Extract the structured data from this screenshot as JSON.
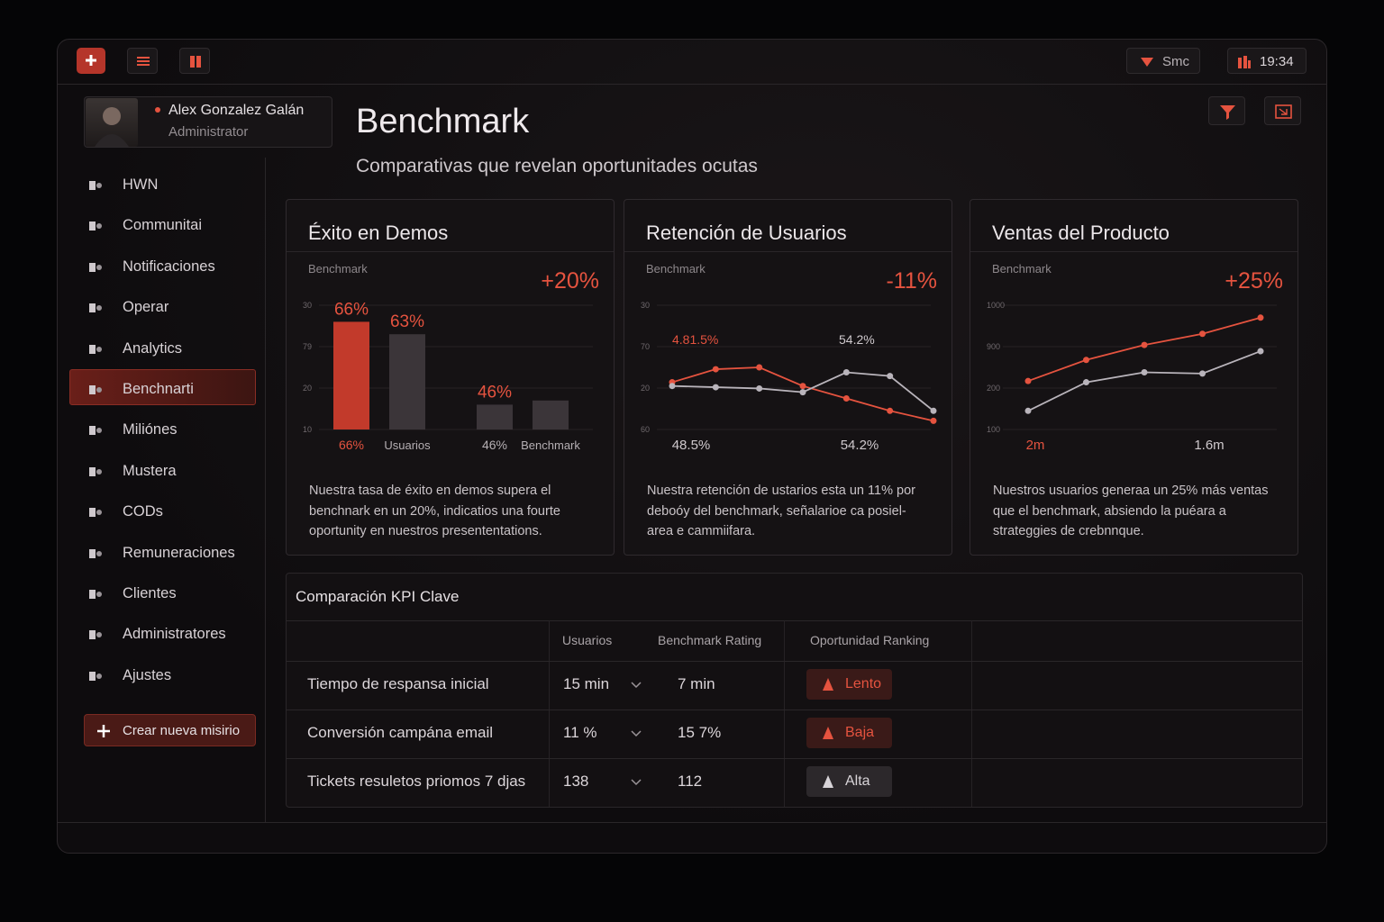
{
  "topbar": {
    "sync": "Smc",
    "time": "19:34"
  },
  "user": {
    "name": "Alex Gonzalez Galán",
    "role": "Administrator"
  },
  "nav": {
    "items": [
      "HWN",
      "Communitai",
      "Notificaciones",
      "Operar",
      "Analytics",
      "Benchnarti",
      "Miliónes",
      "Mustera",
      "CODs",
      "Remuneraciones",
      "Clientes",
      "Administratores",
      "Ajustes"
    ],
    "active": 5,
    "button": "Crear nueva misirio"
  },
  "header": {
    "title": "Benchmark",
    "subtitle": "Comparativas que revelan oportunitades ocutas"
  },
  "cards": [
    {
      "title": "Éxito en Demos",
      "label": "Benchmark",
      "delta": "+20%",
      "chart": {
        "type": "bar",
        "axis_labels": [
          "30",
          "79",
          "20",
          "10"
        ],
        "categories": [
          "66%",
          "Usuarios",
          "46%",
          "Benchmark"
        ],
        "values": [
          66,
          63,
          46,
          47
        ],
        "value_labels": [
          "66%",
          "63%",
          "46%",
          null
        ],
        "colors": [
          "#c23a2b",
          "#3b3539",
          "#3b3539",
          "#3b3539"
        ],
        "ylim": [
          40,
          70
        ]
      },
      "description": [
        "Nuestra tasa de éxito en demos supera el",
        "benchnark en un 20%, indicatios una fourte",
        "oportunity en nuestros presententations."
      ]
    },
    {
      "title": "Retención de Usuarios",
      "label": "Benchmark",
      "delta": "-11%",
      "chart": {
        "type": "line",
        "axis_labels": [
          "30",
          "70",
          "20",
          "60"
        ],
        "x": [
          0,
          1,
          2,
          3,
          4,
          5,
          6
        ],
        "ylim": [
          0,
          100
        ],
        "series": [
          {
            "color": "#e5533f",
            "values": [
              38,
              48.5,
              50,
              35,
              25,
              15,
              7
            ]
          },
          {
            "color": "#b9b4bb",
            "values": [
              35,
              34,
              33,
              30,
              46,
              43,
              15
            ]
          }
        ],
        "annotations": [
          "4.81.5%",
          "54.2%"
        ],
        "x_labels": [
          "48.5%",
          "54.2%"
        ]
      },
      "description": [
        "Nuestra retención de ustarios esta un 11% por",
        "deboóy del benchmark, señalarioe ca posiel-",
        "area e cammiifara."
      ]
    },
    {
      "title": "Ventas del Producto",
      "label": "Benchmark",
      "delta": "+25%",
      "chart": {
        "type": "line",
        "axis_labels": [
          "1000",
          "900",
          "200",
          "100"
        ],
        "x": [
          0,
          1,
          2,
          3,
          4
        ],
        "ylim": [
          0,
          100
        ],
        "series": [
          {
            "color": "#e5533f",
            "values": [
              39,
              56,
              68,
              77,
              90
            ]
          },
          {
            "color": "#b9b4bb",
            "values": [
              15,
              38,
              46,
              45,
              63
            ]
          }
        ],
        "x_labels": [
          "2m",
          "1.6m"
        ]
      },
      "description": [
        "Nuestros usuarios generaa un 25% más ventas",
        "que el benchmark, absiendo la puéara a",
        "strateggies de crebnnque."
      ]
    }
  ],
  "table": {
    "title": "Comparación KPI Clave",
    "headers": [
      "Usuarios",
      "Benchmark Rating",
      "Oportunidad Ranking"
    ],
    "rows": [
      [
        "Tiempo de respansa inicial",
        "15 min",
        "7 min",
        "Lento"
      ],
      [
        "Conversión campána email",
        "11 %",
        "15 7%",
        "Baja"
      ],
      [
        "Tickets resuletos priomos 7 djas",
        "138",
        "112",
        "Alta"
      ]
    ],
    "ranking_colors": [
      "#e5533f",
      "#e5533f",
      "#d8d4d8"
    ]
  }
}
